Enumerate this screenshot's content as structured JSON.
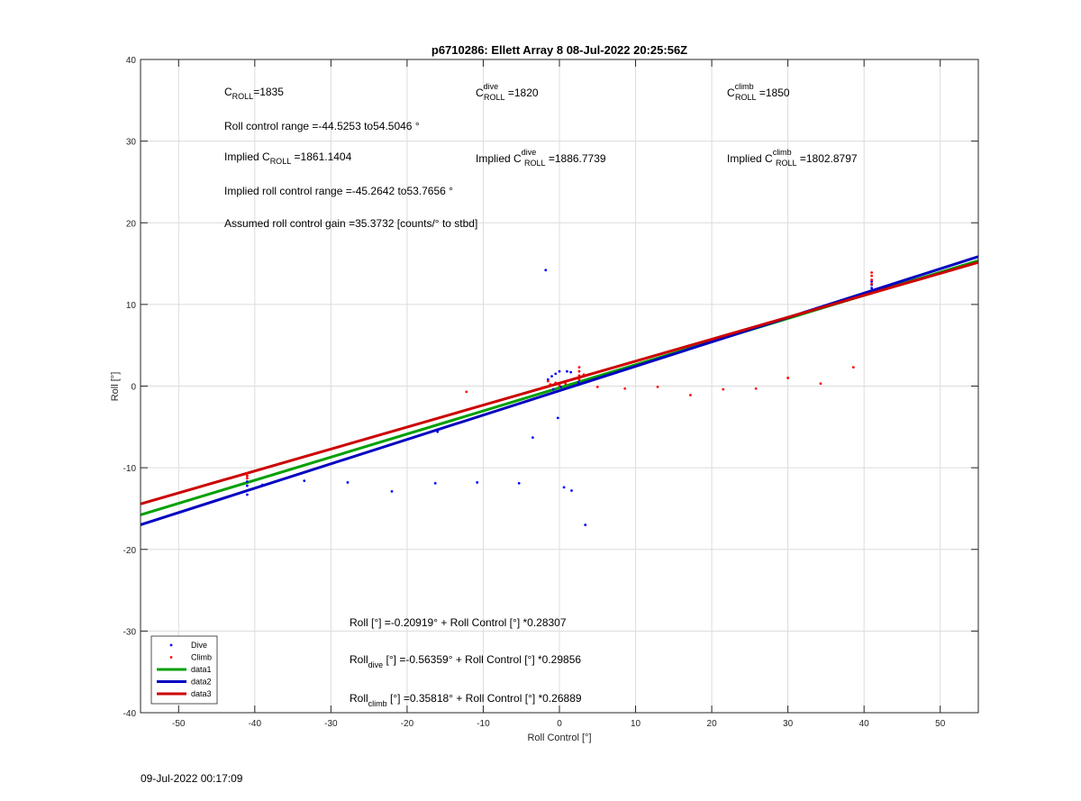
{
  "chart_data": {
    "type": "scatter",
    "title": "p6710286: Ellett Array 8 08-Jul-2022 20:25:56Z",
    "xlabel": "Roll Control [°]",
    "ylabel": "Roll [°]",
    "xlim": [
      -55,
      55
    ],
    "ylim": [
      -40,
      40
    ],
    "x_ticks": [
      -50,
      -40,
      -30,
      -20,
      -10,
      0,
      10,
      20,
      30,
      40,
      50
    ],
    "y_ticks": [
      -40,
      -30,
      -20,
      -10,
      0,
      10,
      20,
      30,
      40
    ],
    "grid": true,
    "legend_position": "bottom-left",
    "series": [
      {
        "name": "Dive",
        "kind": "points",
        "color": "#0000ff",
        "points": [
          [
            -41,
            -13.3
          ],
          [
            -41,
            -12.2
          ],
          [
            -41,
            -11.7
          ],
          [
            -39,
            -12.1
          ],
          [
            -33.5,
            -11.6
          ],
          [
            -27.8,
            -11.8
          ],
          [
            -22,
            -12.9
          ],
          [
            -16.3,
            -11.9
          ],
          [
            -10.8,
            -11.8
          ],
          [
            -5.3,
            -11.9
          ],
          [
            -3.5,
            -6.3
          ],
          [
            -1.8,
            14.2
          ],
          [
            -1.5,
            0.8
          ],
          [
            -1,
            1.2
          ],
          [
            -0.5,
            1.5
          ],
          [
            0,
            1.8
          ],
          [
            1,
            1.8
          ],
          [
            1.5,
            1.7
          ],
          [
            -0.2,
            -3.9
          ],
          [
            0.6,
            -12.4
          ],
          [
            1.6,
            -12.8
          ],
          [
            3.4,
            -17
          ],
          [
            2.5,
            0.5
          ],
          [
            -16,
            -5.6
          ],
          [
            0.2,
            -0.1
          ],
          [
            -0.8,
            -0.4
          ],
          [
            41,
            12
          ],
          [
            41,
            12.4
          ],
          [
            41,
            12.8
          ]
        ]
      },
      {
        "name": "Climb",
        "kind": "points",
        "color": "#ff0000",
        "points": [
          [
            -41,
            -11
          ],
          [
            -41,
            -10.7
          ],
          [
            -41,
            -11.3
          ],
          [
            -12.2,
            -0.7
          ],
          [
            -2.2,
            -0.2
          ],
          [
            -1.5,
            0.6
          ],
          [
            -1.2,
            0.2
          ],
          [
            -0.5,
            0.4
          ],
          [
            0,
            0.1
          ],
          [
            0.8,
            0.3
          ],
          [
            2.6,
            0.8
          ],
          [
            2.6,
            1.3
          ],
          [
            2.6,
            1.8
          ],
          [
            2.6,
            2.3
          ],
          [
            3.2,
            1.4
          ],
          [
            5,
            -0.1
          ],
          [
            8.6,
            -0.3
          ],
          [
            12.9,
            -0.1
          ],
          [
            17.2,
            -1.1
          ],
          [
            21.5,
            -0.4
          ],
          [
            25.8,
            -0.3
          ],
          [
            30,
            1
          ],
          [
            34.3,
            0.3
          ],
          [
            38.6,
            2.3
          ],
          [
            41,
            12.5
          ],
          [
            41,
            13
          ],
          [
            41,
            13.5
          ],
          [
            41,
            13.9
          ]
        ]
      },
      {
        "name": "data1",
        "kind": "line",
        "color": "#00a000",
        "intercept": -0.20919,
        "slope": 0.28307
      },
      {
        "name": "data2",
        "kind": "line",
        "color": "#0000c0",
        "intercept": -0.56359,
        "slope": 0.29856
      },
      {
        "name": "data3",
        "kind": "line",
        "color": "#cc0000",
        "intercept": 0.35818,
        "slope": 0.26889
      }
    ]
  },
  "annotations": {
    "croll": {
      "base": "C",
      "sub": "ROLL",
      "value": "=1835"
    },
    "croll_dive": {
      "base": "C",
      "sup": "dive",
      "sub": "ROLL",
      "value": " =1820"
    },
    "croll_climb": {
      "base": "C",
      "sup": "climb",
      "sub": "ROLL",
      "value": " =1850"
    },
    "range": "Roll control range =-44.5253 to54.5046 °",
    "implied": {
      "prefix": "Implied C",
      "sub": "ROLL",
      "value": " =1861.1404"
    },
    "implied_dive": {
      "prefix": "Implied C",
      "sup": "dive",
      "sub": "ROLL",
      "value": " =1886.7739"
    },
    "implied_climb": {
      "prefix": "Implied C",
      "sup": "climb",
      "sub": "ROLL",
      "value": " =1802.8797"
    },
    "implied_range": "Implied roll control range =-45.2642 to53.7656 °",
    "gain": "Assumed roll control gain =35.3732 [counts/° to stbd]",
    "eq_all": {
      "text": "Roll [°] =-0.20919° + Roll Control [°] *0.28307"
    },
    "eq_dive": {
      "base": "Roll",
      "sub": "dive",
      "text": " [°] =-0.56359° + Roll Control [°] *0.29856"
    },
    "eq_climb": {
      "base": "Roll",
      "sub": "climb",
      "text": " [°] =0.35818° + Roll Control [°] *0.26889"
    }
  },
  "footer": {
    "timestamp": "09-Jul-2022 00:17:09"
  }
}
